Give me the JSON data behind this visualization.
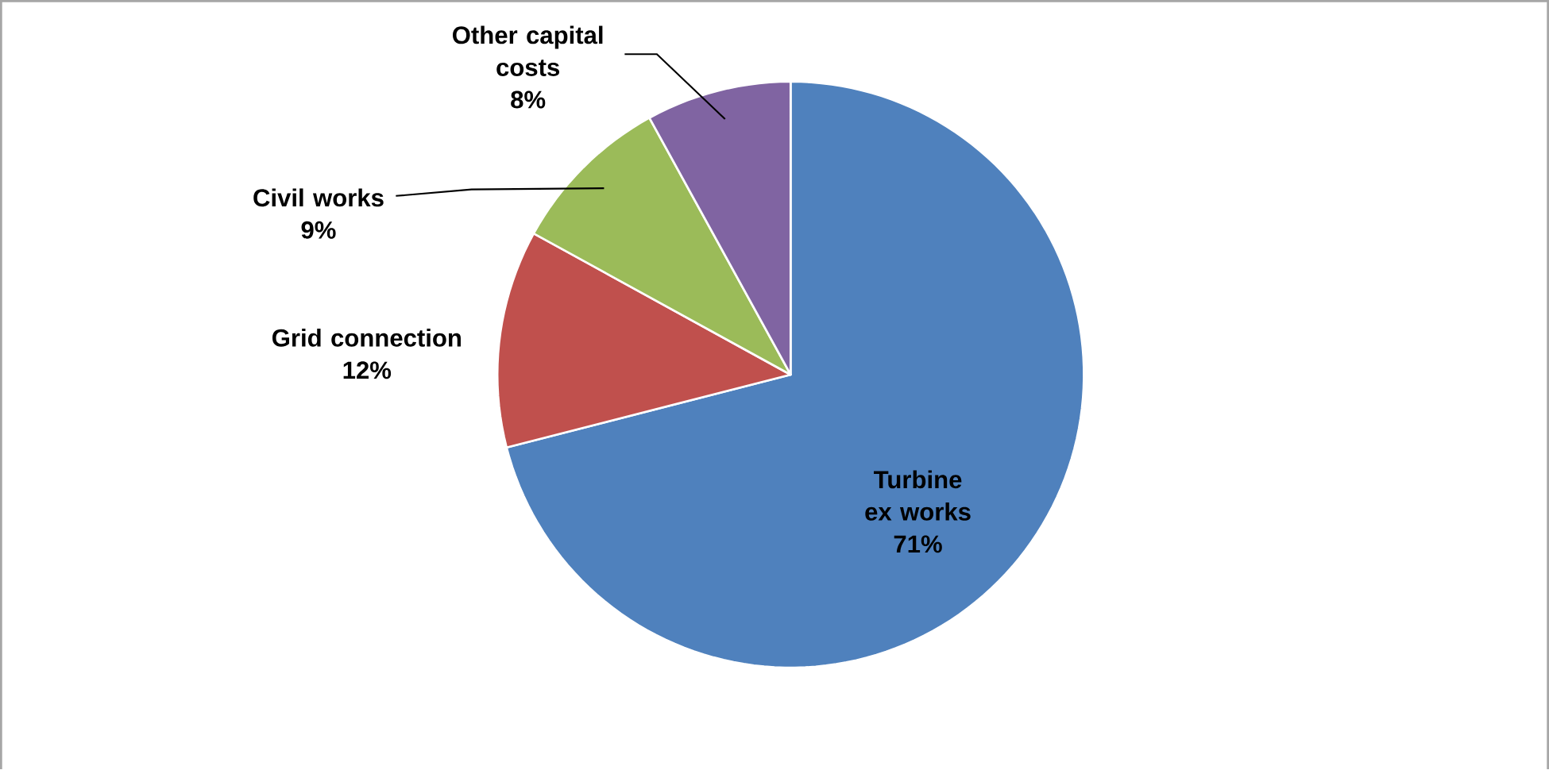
{
  "chart_data": {
    "type": "pie",
    "categories": [
      "Turbine ex works",
      "Grid connection",
      "Civil works",
      "Other capital costs"
    ],
    "values": [
      71,
      12,
      9,
      8
    ],
    "value_labels": [
      "71%",
      "12%",
      "9%",
      "8%"
    ],
    "colors": [
      "#4f81bd",
      "#c0504d",
      "#9bbb59",
      "#8064a2"
    ],
    "legend": false
  }
}
